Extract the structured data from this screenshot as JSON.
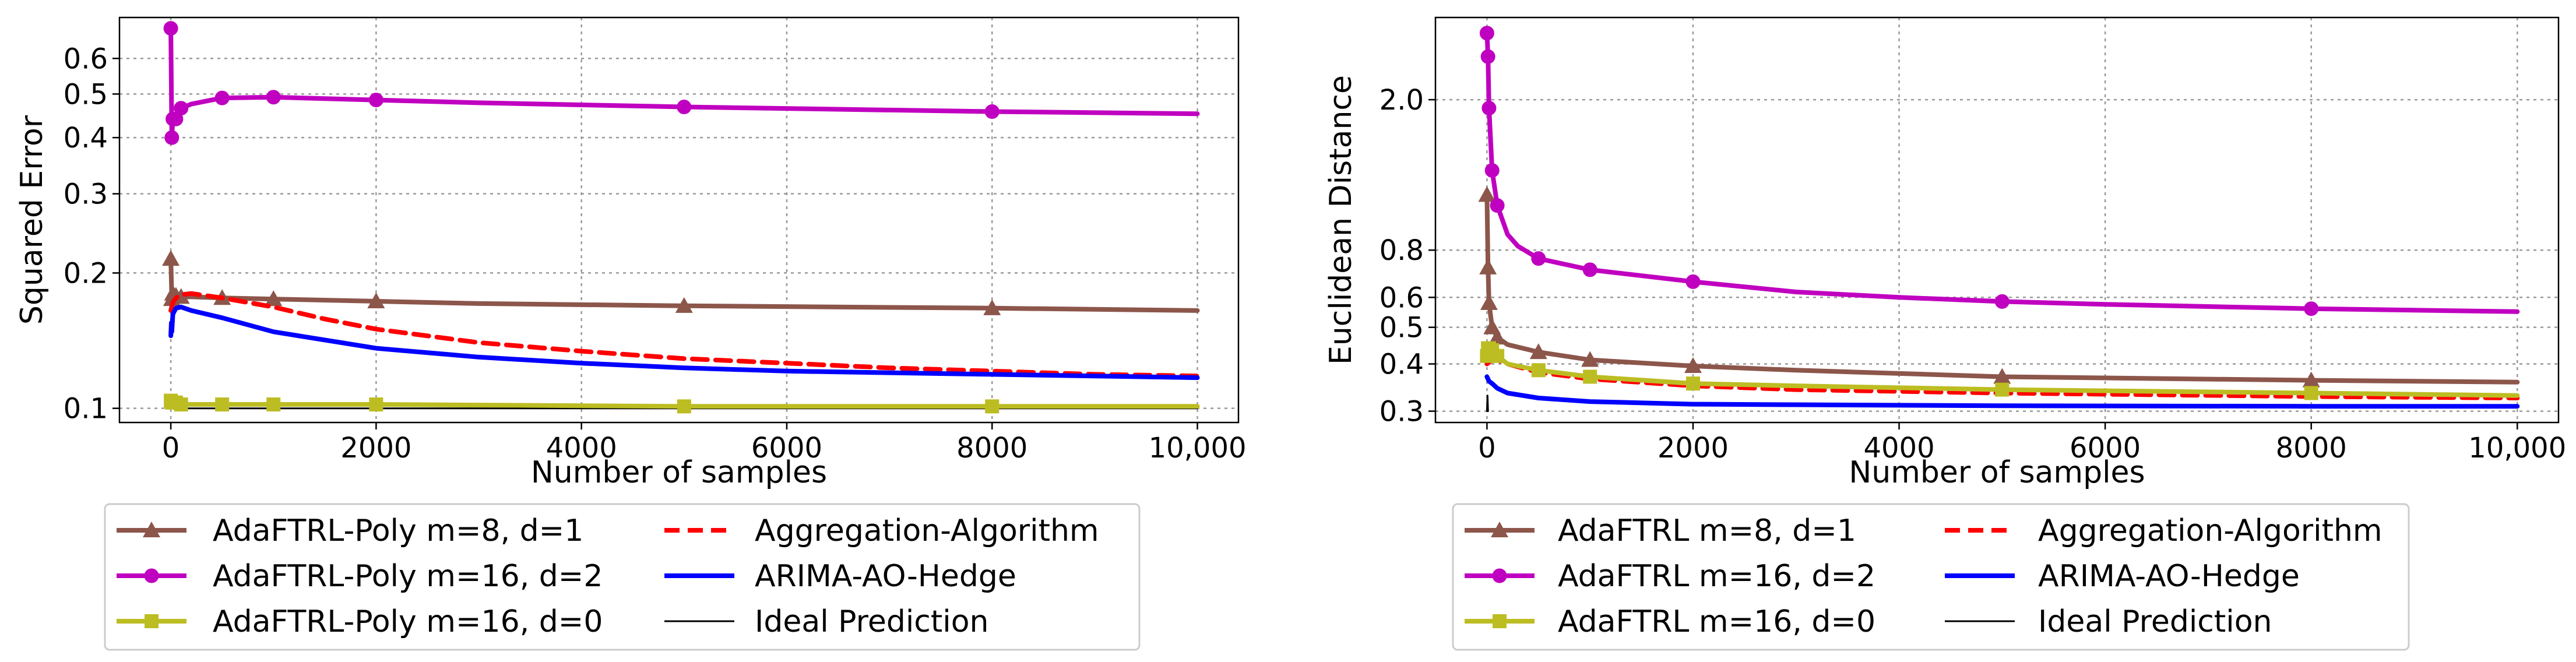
{
  "chart_data": [
    {
      "type": "line",
      "xlabel": "Number of samples",
      "ylabel": "Squared Error",
      "xlim": [
        -500,
        10400
      ],
      "ylim": [
        0.093,
        0.74
      ],
      "yscale": "log",
      "grid": true,
      "legend_position": "below",
      "xticks": [
        0,
        2000,
        4000,
        6000,
        8000,
        10000
      ],
      "xtick_labels": [
        "0",
        "2000",
        "4000",
        "6000",
        "8000",
        "10,000"
      ],
      "yticks": [
        0.1,
        0.2,
        0.3,
        0.4,
        0.5,
        0.6
      ],
      "ytick_labels": [
        "0.1",
        "0.2",
        "0.3",
        "0.4",
        "0.5",
        "0.6"
      ],
      "series": [
        {
          "name": "AdaFTRL-Poly m=8, d=1",
          "color": "#8c564b",
          "marker": "triangle",
          "x": [
            0,
            10,
            20,
            50,
            100,
            200,
            500,
            1000,
            2000,
            3000,
            5000,
            8000,
            10000
          ],
          "y": [
            0.215,
            0.175,
            0.18,
            0.178,
            0.177,
            0.177,
            0.176,
            0.175,
            0.173,
            0.171,
            0.169,
            0.167,
            0.165
          ],
          "markers_x": [
            0,
            10,
            20,
            50,
            100,
            500,
            1000,
            2000,
            5000,
            8000
          ]
        },
        {
          "name": "AdaFTRL-Poly m=16, d=2",
          "color": "#c000c0",
          "marker": "circle",
          "x": [
            0,
            10,
            20,
            50,
            100,
            200,
            500,
            1000,
            2000,
            3000,
            5000,
            8000,
            10000
          ],
          "y": [
            0.7,
            0.4,
            0.44,
            0.44,
            0.465,
            0.475,
            0.49,
            0.492,
            0.485,
            0.478,
            0.468,
            0.457,
            0.452
          ],
          "markers_x": [
            0,
            10,
            20,
            50,
            100,
            500,
            1000,
            2000,
            5000,
            8000
          ]
        },
        {
          "name": "AdaFTRL-Poly m=16, d=0",
          "color": "#bcbd22",
          "marker": "square",
          "x": [
            0,
            10,
            20,
            50,
            100,
            500,
            1000,
            2000,
            5000,
            8000,
            10000
          ],
          "y": [
            0.104,
            0.103,
            0.103,
            0.103,
            0.102,
            0.102,
            0.102,
            0.102,
            0.101,
            0.101,
            0.101
          ],
          "markers_x": [
            0,
            10,
            20,
            50,
            100,
            500,
            1000,
            2000,
            5000,
            8000
          ]
        },
        {
          "name": "Aggregation-Algorithm",
          "color": "#ff0000",
          "marker": "none",
          "dashed": true,
          "x": [
            0,
            20,
            50,
            100,
            200,
            500,
            1000,
            1500,
            2000,
            3000,
            4000,
            5000,
            6000,
            7000,
            8000,
            9000,
            10000
          ],
          "y": [
            0.165,
            0.172,
            0.176,
            0.179,
            0.18,
            0.176,
            0.168,
            0.158,
            0.15,
            0.14,
            0.134,
            0.129,
            0.126,
            0.123,
            0.121,
            0.119,
            0.118
          ]
        },
        {
          "name": "ARIMA-AO-Hedge",
          "color": "#0000ff",
          "marker": "none",
          "x": [
            0,
            5,
            10,
            20,
            50,
            100,
            200,
            500,
            1000,
            2000,
            3000,
            4000,
            5000,
            6000,
            7000,
            8000,
            9000,
            10000
          ],
          "y": [
            0.145,
            0.155,
            0.148,
            0.162,
            0.167,
            0.168,
            0.165,
            0.159,
            0.148,
            0.136,
            0.13,
            0.126,
            0.123,
            0.121,
            0.12,
            0.119,
            0.118,
            0.117
          ]
        },
        {
          "name": "Ideal Prediction",
          "color": "#000000",
          "marker": "none",
          "thin": true,
          "x": [
            0,
            10000
          ],
          "y": [
            0.1,
            0.1
          ]
        }
      ]
    },
    {
      "type": "line",
      "xlabel": "Number of samples",
      "ylabel": "Euclidean Distance",
      "xlim": [
        -500,
        10400
      ],
      "ylim": [
        0.28,
        3.3
      ],
      "yscale": "log",
      "grid": true,
      "legend_position": "below",
      "xticks": [
        0,
        2000,
        4000,
        6000,
        8000,
        10000
      ],
      "xtick_labels": [
        "0",
        "2000",
        "4000",
        "6000",
        "8000",
        "10,000"
      ],
      "yticks": [
        0.3,
        0.4,
        0.5,
        0.6,
        0.8,
        2.0
      ],
      "ytick_labels": [
        "0.3",
        "0.4",
        "0.5",
        "0.6",
        "0.8",
        "2.0"
      ],
      "series": [
        {
          "name": "AdaFTRL m=8, d=1",
          "color": "#8c564b",
          "marker": "triangle",
          "x": [
            0,
            10,
            20,
            50,
            100,
            200,
            500,
            1000,
            2000,
            3000,
            5000,
            8000,
            10000
          ],
          "y": [
            1.12,
            0.72,
            0.58,
            0.5,
            0.47,
            0.45,
            0.43,
            0.41,
            0.395,
            0.385,
            0.37,
            0.362,
            0.358
          ],
          "markers_x": [
            0,
            10,
            20,
            50,
            100,
            500,
            1000,
            2000,
            5000,
            8000
          ]
        },
        {
          "name": "AdaFTRL m=16, d=2",
          "color": "#c000c0",
          "marker": "circle",
          "x": [
            0,
            10,
            20,
            50,
            100,
            200,
            300,
            500,
            1000,
            2000,
            3000,
            4000,
            5000,
            6000,
            8000,
            10000
          ],
          "y": [
            3.0,
            2.6,
            1.9,
            1.3,
            1.05,
            0.88,
            0.82,
            0.76,
            0.71,
            0.66,
            0.62,
            0.6,
            0.585,
            0.575,
            0.56,
            0.55
          ],
          "markers_x": [
            0,
            10,
            20,
            50,
            100,
            500,
            1000,
            2000,
            5000,
            8000
          ]
        },
        {
          "name": "AdaFTRL m=16, d=0",
          "color": "#bcbd22",
          "marker": "square",
          "x": [
            0,
            10,
            20,
            50,
            100,
            200,
            500,
            1000,
            2000,
            3000,
            5000,
            8000,
            10000
          ],
          "y": [
            0.42,
            0.44,
            0.44,
            0.435,
            0.42,
            0.4,
            0.385,
            0.37,
            0.355,
            0.35,
            0.342,
            0.335,
            0.33
          ],
          "markers_x": [
            0,
            10,
            20,
            50,
            100,
            500,
            1000,
            2000,
            5000,
            8000
          ]
        },
        {
          "name": "Aggregation-Algorithm",
          "color": "#ff0000",
          "marker": "none",
          "dashed": true,
          "x": [
            0,
            50,
            100,
            200,
            500,
            1000,
            2000,
            3000,
            5000,
            8000,
            10000
          ],
          "y": [
            0.4,
            0.41,
            0.41,
            0.4,
            0.38,
            0.365,
            0.35,
            0.342,
            0.335,
            0.328,
            0.325
          ]
        },
        {
          "name": "ARIMA-AO-Hedge",
          "color": "#0000ff",
          "marker": "none",
          "x": [
            0,
            20,
            50,
            100,
            200,
            500,
            1000,
            2000,
            3000,
            5000,
            8000,
            10000
          ],
          "y": [
            0.37,
            0.36,
            0.355,
            0.345,
            0.335,
            0.325,
            0.318,
            0.313,
            0.312,
            0.31,
            0.309,
            0.309
          ]
        },
        {
          "name": "Ideal Prediction",
          "color": "#000000",
          "marker": "none",
          "thin": true,
          "x": [
            0,
            5,
            10
          ],
          "y": [
            0.3,
            0.33,
            0.3
          ]
        }
      ]
    }
  ]
}
